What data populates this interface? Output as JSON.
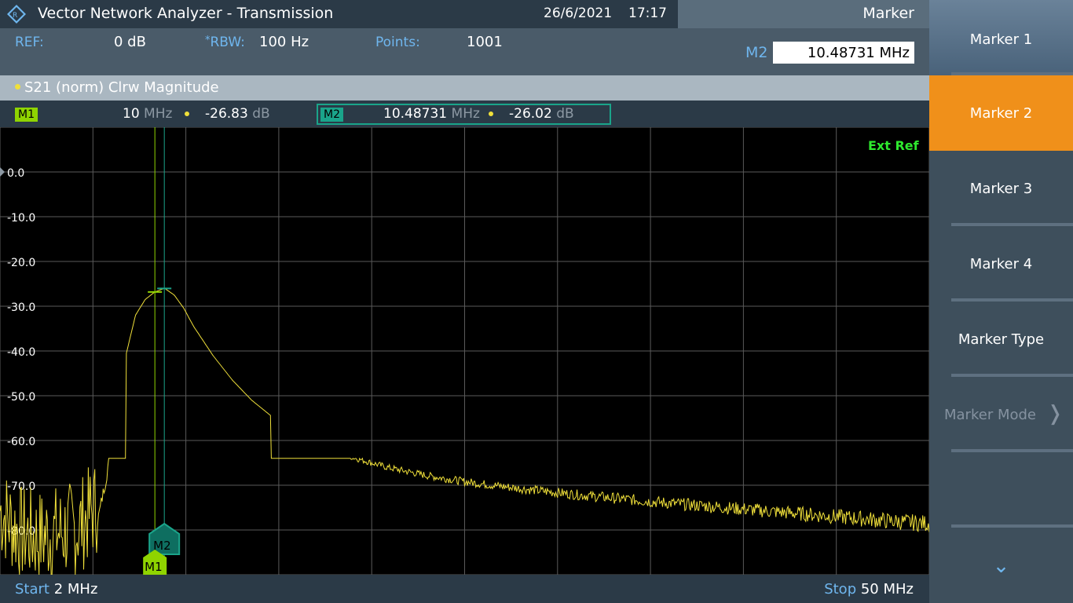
{
  "app": {
    "title": "Vector Network Analyzer - Transmission",
    "date": "26/6/2021",
    "time": "17:17"
  },
  "info": {
    "ref_label": "REF:",
    "ref_value": "0 dB",
    "rbw_star": "*",
    "rbw_label": "RBW:",
    "rbw_value": "100 Hz",
    "points_label": "Points:",
    "points_value": "1001"
  },
  "marker_panel": {
    "header": "Marker",
    "active_label": "M2",
    "active_value": "10.48731 MHz"
  },
  "trace": {
    "label": "S21 (norm) Clrw Magnitude"
  },
  "markers": {
    "m1": {
      "tag": "M1",
      "freq": "10",
      "freq_unit": "MHz",
      "level": "-26.83",
      "level_unit": "dB"
    },
    "m2": {
      "tag": "M2",
      "freq": "10.48731",
      "freq_unit": "MHz",
      "level": "-26.02",
      "level_unit": "dB"
    }
  },
  "plot": {
    "ext_ref": "Ext Ref",
    "y_ticks": [
      "0.0",
      "-10.0",
      "-20.0",
      "-30.0",
      "-40.0",
      "-50.0",
      "-60.0",
      "-70.0",
      "-80.0"
    ],
    "start_label": "Start",
    "start_value": "2 MHz",
    "stop_label": "Stop",
    "stop_value": "50 MHz"
  },
  "chart_data": {
    "type": "line",
    "xlabel": "",
    "ylabel": "",
    "x_unit": "MHz",
    "y_unit": "dB",
    "xlim": [
      2,
      50
    ],
    "ylim": [
      -90,
      10
    ],
    "grid": true,
    "series": [
      {
        "x": [
          2,
          3,
          4,
          5,
          6,
          7,
          7.5,
          8,
          8.5,
          9,
          9.5,
          10,
          10.5,
          11,
          11.5,
          12,
          13,
          14,
          15,
          16,
          17,
          18,
          20,
          22,
          24,
          26,
          28,
          30,
          32,
          34,
          36,
          38,
          40,
          42,
          44,
          46,
          48,
          50
        ],
        "y": [
          -80,
          -85,
          -86,
          -85,
          -84,
          -79,
          -68,
          -53,
          -41,
          -32,
          -28.5,
          -26.8,
          -26.0,
          -27.5,
          -30.5,
          -34.5,
          -41,
          -46.5,
          -51,
          -54.5,
          -57.5,
          -60,
          -63.5,
          -66,
          -67.8,
          -69.2,
          -70.3,
          -71.3,
          -72.2,
          -73.0,
          -73.8,
          -74.5,
          -75.2,
          -75.9,
          -76.6,
          -77.3,
          -78.0,
          -78.6
        ],
        "color": "#f0e03a"
      }
    ],
    "markers": [
      {
        "name": "M1",
        "x": 10,
        "y": -26.83,
        "color": "#8fd400"
      },
      {
        "name": "M2",
        "x": 10.48731,
        "y": -26.02,
        "color": "#1aa48a"
      }
    ]
  },
  "softkeys": [
    {
      "label": "Marker 1",
      "state": "normal"
    },
    {
      "label": "Marker 2",
      "state": "active"
    },
    {
      "label": "Marker 3",
      "state": "normal"
    },
    {
      "label": "Marker 4",
      "state": "normal"
    },
    {
      "label": "Marker Type",
      "state": "normal"
    },
    {
      "label": "Marker Mode",
      "state": "disabled"
    }
  ],
  "colors": {
    "trace": "#f0e03a",
    "m1": "#8fd400",
    "m2": "#1aa48a",
    "active_softkey": "#f0901a",
    "accent_blue": "#6fb6ee"
  }
}
